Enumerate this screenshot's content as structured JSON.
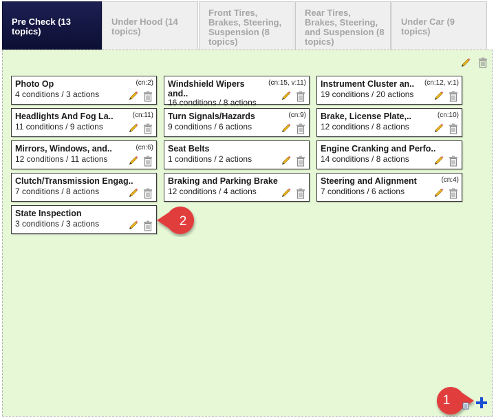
{
  "tabs": [
    {
      "label": "Pre Check (13 topics)",
      "active": true
    },
    {
      "label": "Under Hood (14 topics)",
      "active": false
    },
    {
      "label": "Front Tires, Brakes, Steering, Suspension (8 topics)",
      "active": false
    },
    {
      "label": "Rear Tires, Brakes, Steering, and Suspension (8 topics)",
      "active": false
    },
    {
      "label": "Under Car (9 topics)",
      "active": false
    }
  ],
  "topics": [
    {
      "title": "Photo Op",
      "meta": "4 conditions / 3 actions",
      "cn": "(cn:2)"
    },
    {
      "title": "Windshield Wipers and..",
      "meta": "16 conditions / 8 actions",
      "cn": "(cn:15, v:11)"
    },
    {
      "title": "Instrument Cluster an..",
      "meta": "19 conditions / 20 actions",
      "cn": "(cn:12, v:1)"
    },
    {
      "title": "Headlights And Fog La..",
      "meta": "11 conditions / 9 actions",
      "cn": "(cn:11)"
    },
    {
      "title": "Turn Signals/Hazards",
      "meta": "9 conditions / 6 actions",
      "cn": "(cn:9)"
    },
    {
      "title": "Brake, License Plate,..",
      "meta": "12 conditions / 8 actions",
      "cn": "(cn:10)"
    },
    {
      "title": "Mirrors, Windows, and..",
      "meta": "12 conditions / 11 actions",
      "cn": "(cn:6)"
    },
    {
      "title": "Seat Belts",
      "meta": "1 conditions / 2 actions",
      "cn": ""
    },
    {
      "title": "Engine Cranking and Perfo..",
      "meta": "14 conditions / 8 actions",
      "cn": ""
    },
    {
      "title": "Clutch/Transmission Engag..",
      "meta": "7 conditions / 8 actions",
      "cn": ""
    },
    {
      "title": "Braking and Parking Brake",
      "meta": "12 conditions / 4 actions",
      "cn": ""
    },
    {
      "title": "Steering and Alignment",
      "meta": "7 conditions / 6 actions",
      "cn": "(cn:4)"
    },
    {
      "title": "State Inspection",
      "meta": "3 conditions / 3 actions",
      "cn": ""
    }
  ],
  "callouts": {
    "one": "1",
    "two": "2"
  },
  "icons": {
    "edit": "pencil-icon",
    "delete": "trash-icon",
    "add": "plus-icon"
  },
  "colors": {
    "active_tab": "#11143f",
    "panel_bg": "#e6f8d6",
    "callout": "#e23d3d",
    "plus": "#1a4fd1"
  }
}
